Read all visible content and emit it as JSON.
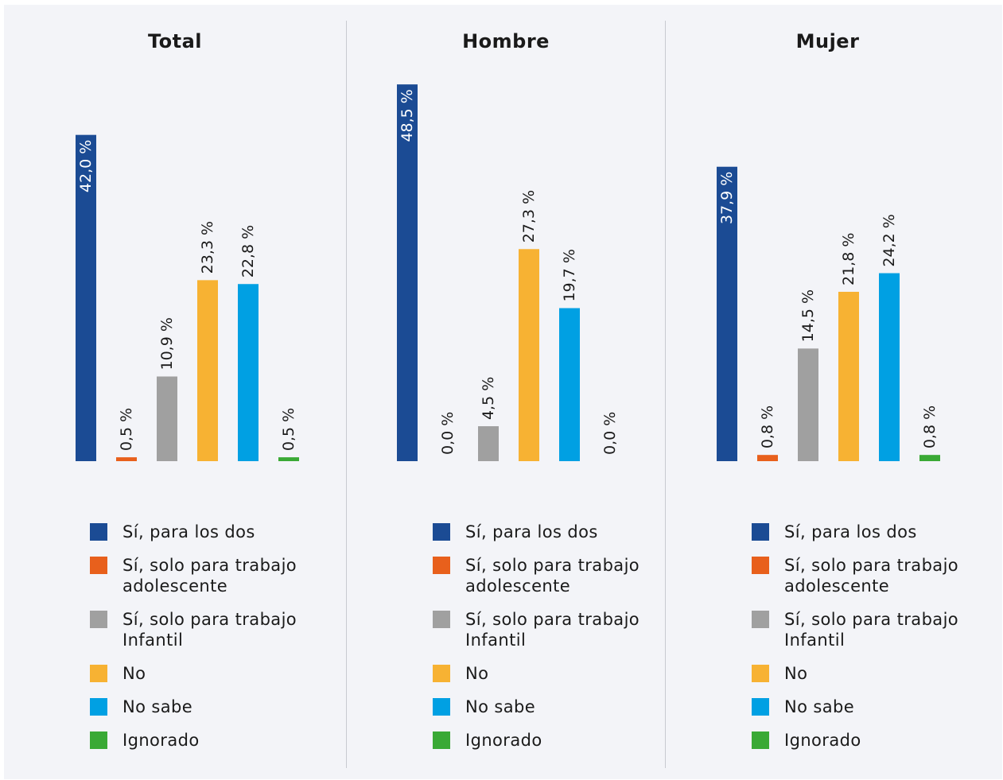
{
  "legend": [
    {
      "label": "Sí, para los dos",
      "color": "#1b4b94"
    },
    {
      "label": "Sí, solo para trabajo adolescente",
      "color": "#e8601c"
    },
    {
      "label": "Sí, solo para trabajo Infantil",
      "color": "#a0a0a0"
    },
    {
      "label": "No",
      "color": "#f7b233"
    },
    {
      "label": "No sabe",
      "color": "#00a0e3"
    },
    {
      "label": "Ignorado",
      "color": "#3aa935"
    }
  ],
  "chart_data": [
    {
      "type": "bar",
      "title": "Total",
      "categories": [
        "Sí, para los dos",
        "Sí, solo para trabajo adolescente",
        "Sí, solo para trabajo Infantil",
        "No",
        "No sabe",
        "Ignorado"
      ],
      "values": [
        42.0,
        0.5,
        10.9,
        23.3,
        22.8,
        0.5
      ],
      "labels": [
        "42,0 %",
        "0,5 %",
        "10,9 %",
        "23,3 %",
        "22,8 %",
        "0,5 %"
      ],
      "unit": "%"
    },
    {
      "type": "bar",
      "title": "Hombre",
      "categories": [
        "Sí, para los dos",
        "Sí, solo para trabajo adolescente",
        "Sí, solo para trabajo Infantil",
        "No",
        "No sabe",
        "Ignorado"
      ],
      "values": [
        48.5,
        0.0,
        4.5,
        27.3,
        19.7,
        0.0
      ],
      "labels": [
        "48,5 %",
        "0,0 %",
        "4,5 %",
        "27,3 %",
        "19,7 %",
        "0,0 %"
      ],
      "unit": "%"
    },
    {
      "type": "bar",
      "title": "Mujer",
      "categories": [
        "Sí, para los dos",
        "Sí, solo para trabajo adolescente",
        "Sí, solo para trabajo Infantil",
        "No",
        "No sabe",
        "Ignorado"
      ],
      "values": [
        37.9,
        0.8,
        14.5,
        21.8,
        24.2,
        0.8
      ],
      "labels": [
        "37,9 %",
        "0,8 %",
        "14,5 %",
        "21,8 %",
        "24,2 %",
        "0,8 %"
      ],
      "unit": "%"
    }
  ]
}
